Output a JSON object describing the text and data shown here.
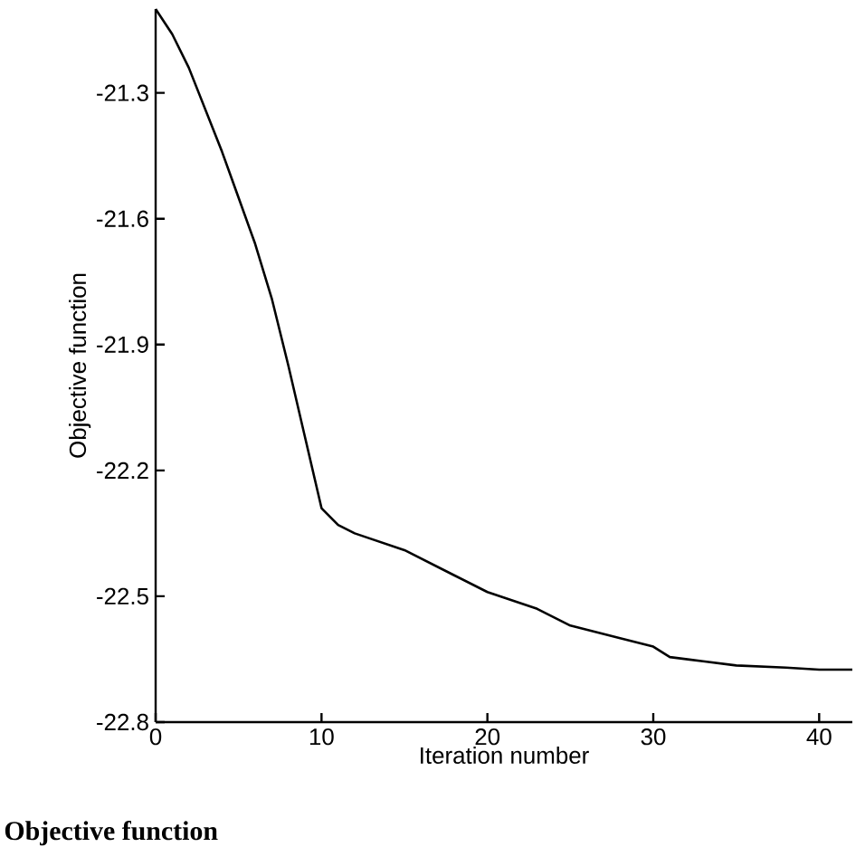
{
  "chart_data": {
    "type": "line",
    "title": "Objective function",
    "xlabel": "Iteration number",
    "ylabel": "Objective function",
    "x": [
      0,
      1,
      2,
      3,
      4,
      5,
      6,
      7,
      8,
      9,
      10,
      11,
      12,
      15,
      18,
      20,
      23,
      25,
      28,
      30,
      31,
      33,
      35,
      38,
      40,
      42
    ],
    "series": [
      {
        "color": "#000000",
        "values": [
          -21.1,
          -21.16,
          -21.24,
          -21.34,
          -21.44,
          -21.55,
          -21.66,
          -21.79,
          -21.95,
          -22.12,
          -22.29,
          -22.33,
          -22.35,
          -22.39,
          -22.45,
          -22.49,
          -22.53,
          -22.57,
          -22.6,
          -22.62,
          -22.645,
          -22.655,
          -22.665,
          -22.67,
          -22.675,
          -22.675
        ]
      }
    ],
    "xlim": [
      0,
      42
    ],
    "ylim": [
      -22.8,
      -21.1
    ],
    "xticks": [
      0,
      10,
      20,
      30,
      40
    ],
    "yticks": [
      -22.8,
      -22.5,
      -22.2,
      -21.9,
      -21.6,
      -21.3
    ],
    "grid": false,
    "marker": "none",
    "line_style": "solid"
  }
}
